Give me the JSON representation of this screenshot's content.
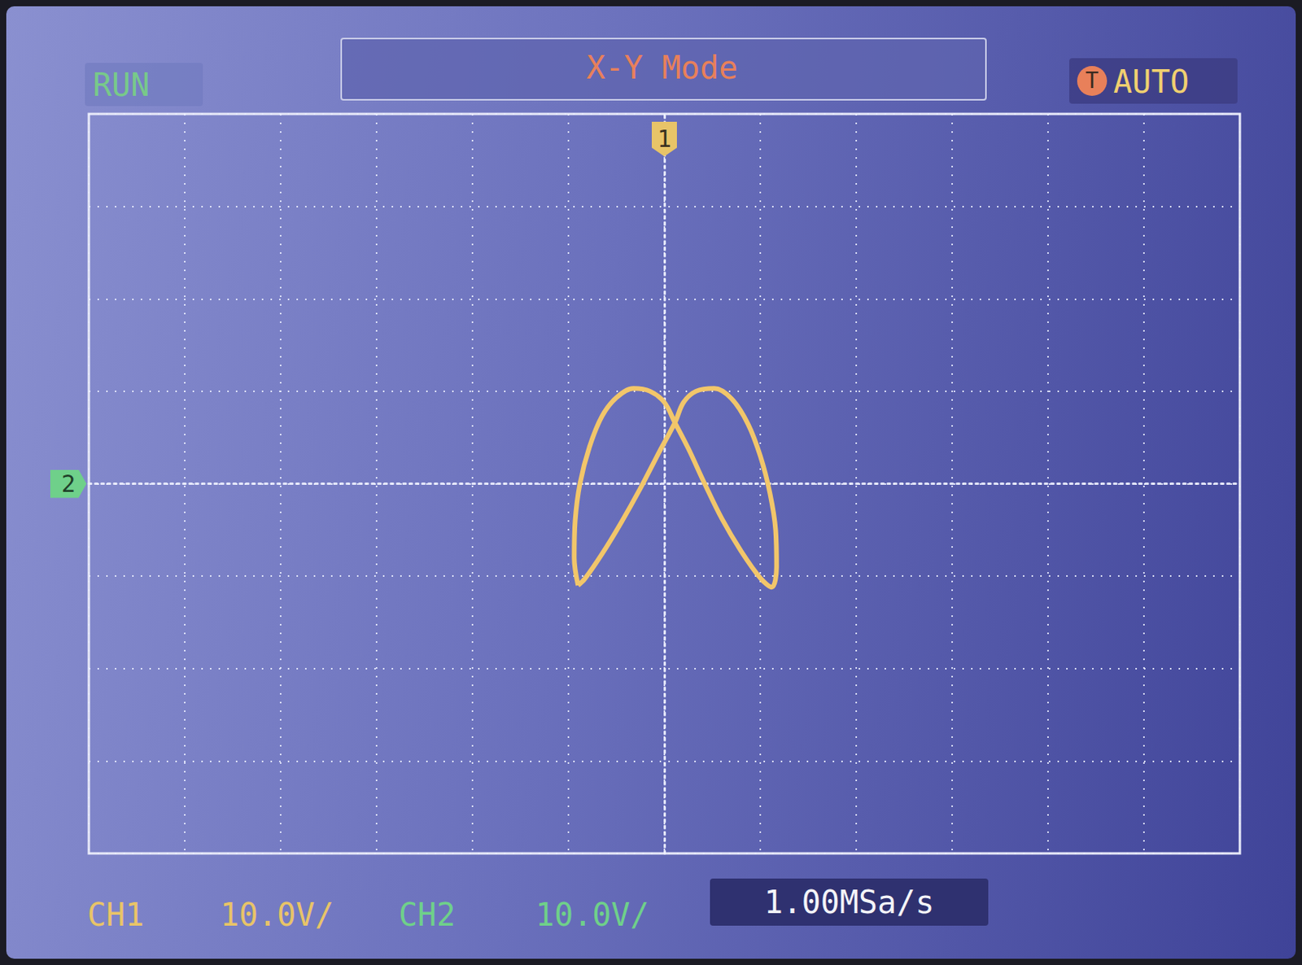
{
  "chart_data": {
    "type": "line",
    "title": "X-Y Mode",
    "status": "RUN",
    "trigger": "AUTO",
    "trigger_icon": "T",
    "channels": [
      {
        "name": "CH1",
        "scale": "10.0V/",
        "marker": "1",
        "color": "#e8c468"
      },
      {
        "name": "CH2",
        "scale": "10.0V/",
        "marker": "2",
        "color": "#6fd08a"
      }
    ],
    "sample_rate": "1.00MSa/s",
    "x": [
      -9.0,
      -9.4,
      -9.3,
      -8.8,
      -7.8,
      -6.5,
      -5.0,
      -3.2,
      -1.5,
      0.0,
      1.1,
      2.5,
      4.2,
      6.0,
      8.0,
      10.0,
      11.2,
      11.7,
      11.6,
      11.0,
      10.0,
      8.7,
      7.0,
      5.2,
      3.3,
      2.0,
      1.1,
      -0.5,
      -2.5,
      -4.5,
      -6.5,
      -8.3,
      -9.0
    ],
    "values": [
      -11.0,
      -8.0,
      -4.0,
      0.0,
      4.0,
      7.3,
      9.3,
      10.3,
      10.0,
      8.8,
      6.6,
      3.8,
      0.0,
      -3.8,
      -7.3,
      -10.2,
      -11.2,
      -9.0,
      -5.0,
      -1.0,
      3.0,
      6.5,
      9.2,
      10.3,
      10.0,
      8.8,
      6.6,
      3.5,
      -0.5,
      -4.2,
      -7.6,
      -10.3,
      -11.0
    ],
    "color": "#f2c66a",
    "line_style": "solid",
    "xlim": [
      -60,
      60
    ],
    "xticks": [
      -60,
      -50,
      -40,
      -30,
      -20,
      -10,
      0,
      10,
      20,
      30,
      40,
      50,
      60
    ],
    "ylim": [
      -40,
      40
    ],
    "yticks": [
      -40,
      -30,
      -20,
      -10,
      0,
      10,
      20,
      30,
      40
    ],
    "grid": true,
    "tick_labels": false
  }
}
